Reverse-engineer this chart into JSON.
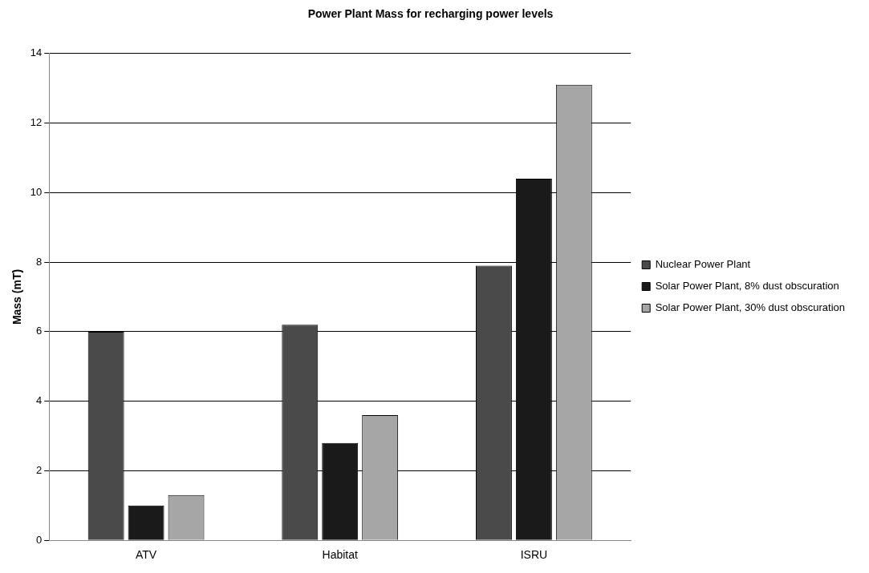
{
  "chart_data": {
    "type": "bar",
    "title": "Power Plant Mass for recharging power levels",
    "ylabel": "Mass (mT)",
    "categories": [
      "ATV",
      "Habitat",
      "ISRU"
    ],
    "series": [
      {
        "name": "Nuclear Power Plant",
        "color": "#4a4a4a",
        "values": [
          6.0,
          6.2,
          7.9
        ]
      },
      {
        "name": "Solar Power Plant, 8% dust obscuration",
        "color": "#1a1a1a",
        "values": [
          1.0,
          2.8,
          10.4
        ]
      },
      {
        "name": "Solar Power Plant, 30% dust obscuration",
        "color": "#a6a6a6",
        "values": [
          1.3,
          3.6,
          13.1
        ]
      }
    ],
    "ylim": [
      0,
      14
    ],
    "yticks": [
      0,
      2,
      4,
      6,
      8,
      10,
      12,
      14
    ],
    "grid": "y",
    "legend": "right"
  }
}
